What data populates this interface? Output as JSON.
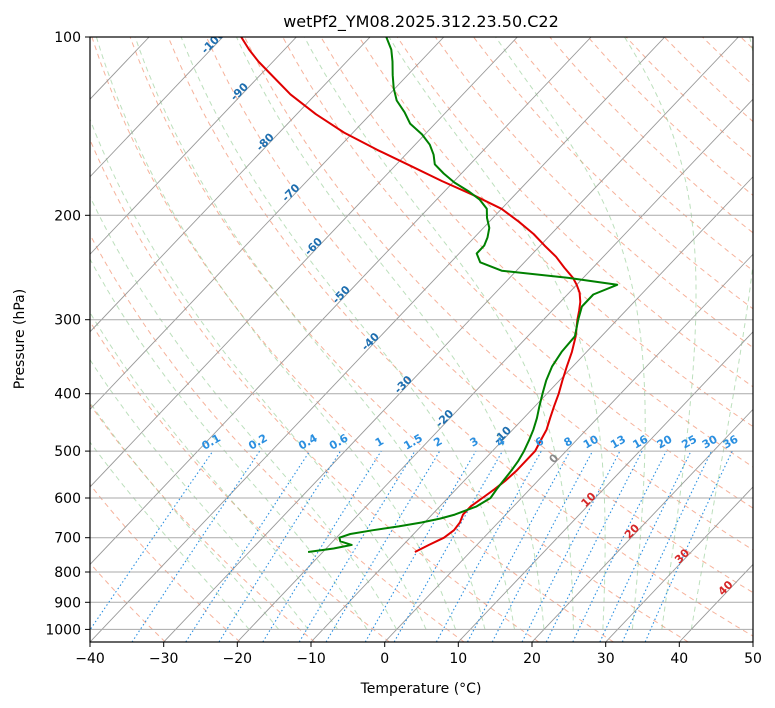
{
  "chart_data": {
    "type": "line",
    "title": "wetPf2_YM08.2025.312.23.50.C22",
    "xlabel": "Temperature (°C)",
    "ylabel": "Pressure (hPa)",
    "xlim": [
      -40,
      50
    ],
    "ylim": [
      1050,
      100
    ],
    "y_scale": "log",
    "x_ticks": [
      -40,
      -30,
      -20,
      -10,
      0,
      10,
      20,
      30,
      40,
      50
    ],
    "y_ticks": [
      100,
      200,
      300,
      400,
      500,
      600,
      700,
      800,
      900,
      1000
    ],
    "grid": true,
    "series": [
      {
        "color": "#e00000",
        "pressure": [
          740,
          720,
          700,
          680,
          660,
          640,
          620,
          600,
          580,
          560,
          540,
          520,
          500,
          480,
          460,
          440,
          420,
          400,
          380,
          360,
          340,
          320,
          300,
          290,
          280,
          270,
          262,
          255,
          245,
          235,
          225,
          215,
          205,
          195,
          185,
          175,
          165,
          155,
          145,
          135,
          125,
          115,
          110,
          105,
          100
        ],
        "temperature": [
          -7.5,
          -6.5,
          -5.4,
          -5.0,
          -5.2,
          -5.8,
          -5.8,
          -5.3,
          -4.8,
          -4.4,
          -4.2,
          -4.2,
          -4.2,
          -4.8,
          -5.4,
          -6.4,
          -7.4,
          -8.4,
          -9.6,
          -10.8,
          -12.0,
          -13.5,
          -15.4,
          -16.3,
          -17.3,
          -18.6,
          -20.0,
          -21.4,
          -23.9,
          -26.4,
          -29.4,
          -32.4,
          -36.0,
          -40.0,
          -45.5,
          -51.7,
          -57.9,
          -64.5,
          -71.2,
          -77.4,
          -83.4,
          -89.0,
          -92.0,
          -94.8,
          -97.5
        ]
      },
      {
        "color": "#008000",
        "pressure": [
          740,
          730,
          720,
          710,
          700,
          690,
          680,
          670,
          660,
          650,
          640,
          620,
          600,
          580,
          560,
          540,
          520,
          500,
          480,
          460,
          440,
          420,
          400,
          380,
          360,
          340,
          320,
          300,
          285,
          272,
          262,
          255,
          248,
          240,
          232,
          225,
          218,
          210,
          202,
          195,
          188,
          182,
          176,
          170,
          164,
          158,
          152,
          146,
          140,
          134,
          128,
          122,
          116,
          110,
          105,
          100
        ],
        "temperature": [
          -22.0,
          -19.0,
          -17.0,
          -19.0,
          -19.6,
          -18.6,
          -16.0,
          -13.0,
          -10.4,
          -8.4,
          -6.9,
          -5.0,
          -4.2,
          -4.5,
          -4.7,
          -4.9,
          -5.2,
          -5.7,
          -6.4,
          -7.2,
          -8.2,
          -9.4,
          -10.6,
          -11.8,
          -12.8,
          -13.4,
          -13.6,
          -15.3,
          -16.5,
          -16.5,
          -14.5,
          -22.0,
          -32.0,
          -36.0,
          -37.6,
          -37.6,
          -38.2,
          -39.2,
          -40.8,
          -42.0,
          -44.2,
          -46.8,
          -49.8,
          -52.4,
          -54.8,
          -56.2,
          -58.0,
          -60.4,
          -63.4,
          -65.6,
          -68.2,
          -70.2,
          -72.0,
          -73.8,
          -75.5,
          -77.8
        ]
      }
    ],
    "isotherm_labels": [
      "-100",
      "-90",
      "-80",
      "-70",
      "-60",
      "-50",
      "-40",
      "-30",
      "-20",
      "-10"
    ],
    "mixing_ratio_labels": [
      "0.1",
      "0.2",
      "0.4",
      "0.6",
      "1",
      "1.5",
      "2",
      "3",
      "4",
      "6",
      "8",
      "10",
      "13",
      "16",
      "20",
      "25",
      "30",
      "36"
    ],
    "mixing_ratio_values": [
      0.1,
      0.2,
      0.4,
      0.6,
      1,
      1.5,
      2,
      3,
      4,
      6,
      8,
      10,
      13,
      16,
      20,
      25,
      30,
      36
    ],
    "isotherm_label_color": "#1f6fb0",
    "mixing_ratio_label_color": "#2a8fe0",
    "adiabat_label_color": "#d62728",
    "adiabat_labels": [
      "0",
      "10",
      "20",
      "30",
      "40"
    ]
  }
}
